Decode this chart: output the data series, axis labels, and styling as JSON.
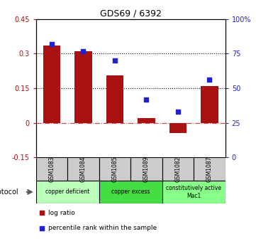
{
  "title": "GDS69 / 6392",
  "samples": [
    "GSM1083",
    "GSM1084",
    "GSM1085",
    "GSM1089",
    "GSM1082",
    "GSM1087"
  ],
  "log_ratio": [
    0.335,
    0.31,
    0.205,
    0.022,
    -0.043,
    0.16
  ],
  "percentile": [
    82,
    77,
    70,
    42,
    33,
    56
  ],
  "ylim_left": [
    -0.15,
    0.45
  ],
  "ylim_right": [
    0,
    100
  ],
  "yticks_left": [
    -0.15,
    0,
    0.15,
    0.3,
    0.45
  ],
  "yticks_right": [
    0,
    25,
    50,
    75,
    100
  ],
  "ytick_labels_left": [
    "-0.15",
    "0",
    "0.15",
    "0.3",
    "0.45"
  ],
  "ytick_labels_right": [
    "0",
    "25",
    "50",
    "75",
    "100%"
  ],
  "hlines": [
    0.15,
    0.3
  ],
  "bar_color": "#aa1111",
  "dot_color": "#2222cc",
  "zero_line_color": "#cc4444",
  "protocol_groups": [
    {
      "label": "copper deficient",
      "start": 0,
      "end": 2,
      "color": "#bbffbb"
    },
    {
      "label": "copper excess",
      "start": 2,
      "end": 4,
      "color": "#44dd44"
    },
    {
      "label": "constitutively active\nMac1",
      "start": 4,
      "end": 6,
      "color": "#88ff88"
    }
  ],
  "protocol_label": "protocol",
  "legend_log_ratio": "log ratio",
  "legend_percentile": "percentile rank within the sample",
  "bar_width": 0.55,
  "sample_box_color": "#cccccc",
  "fig_bg": "#ffffff"
}
